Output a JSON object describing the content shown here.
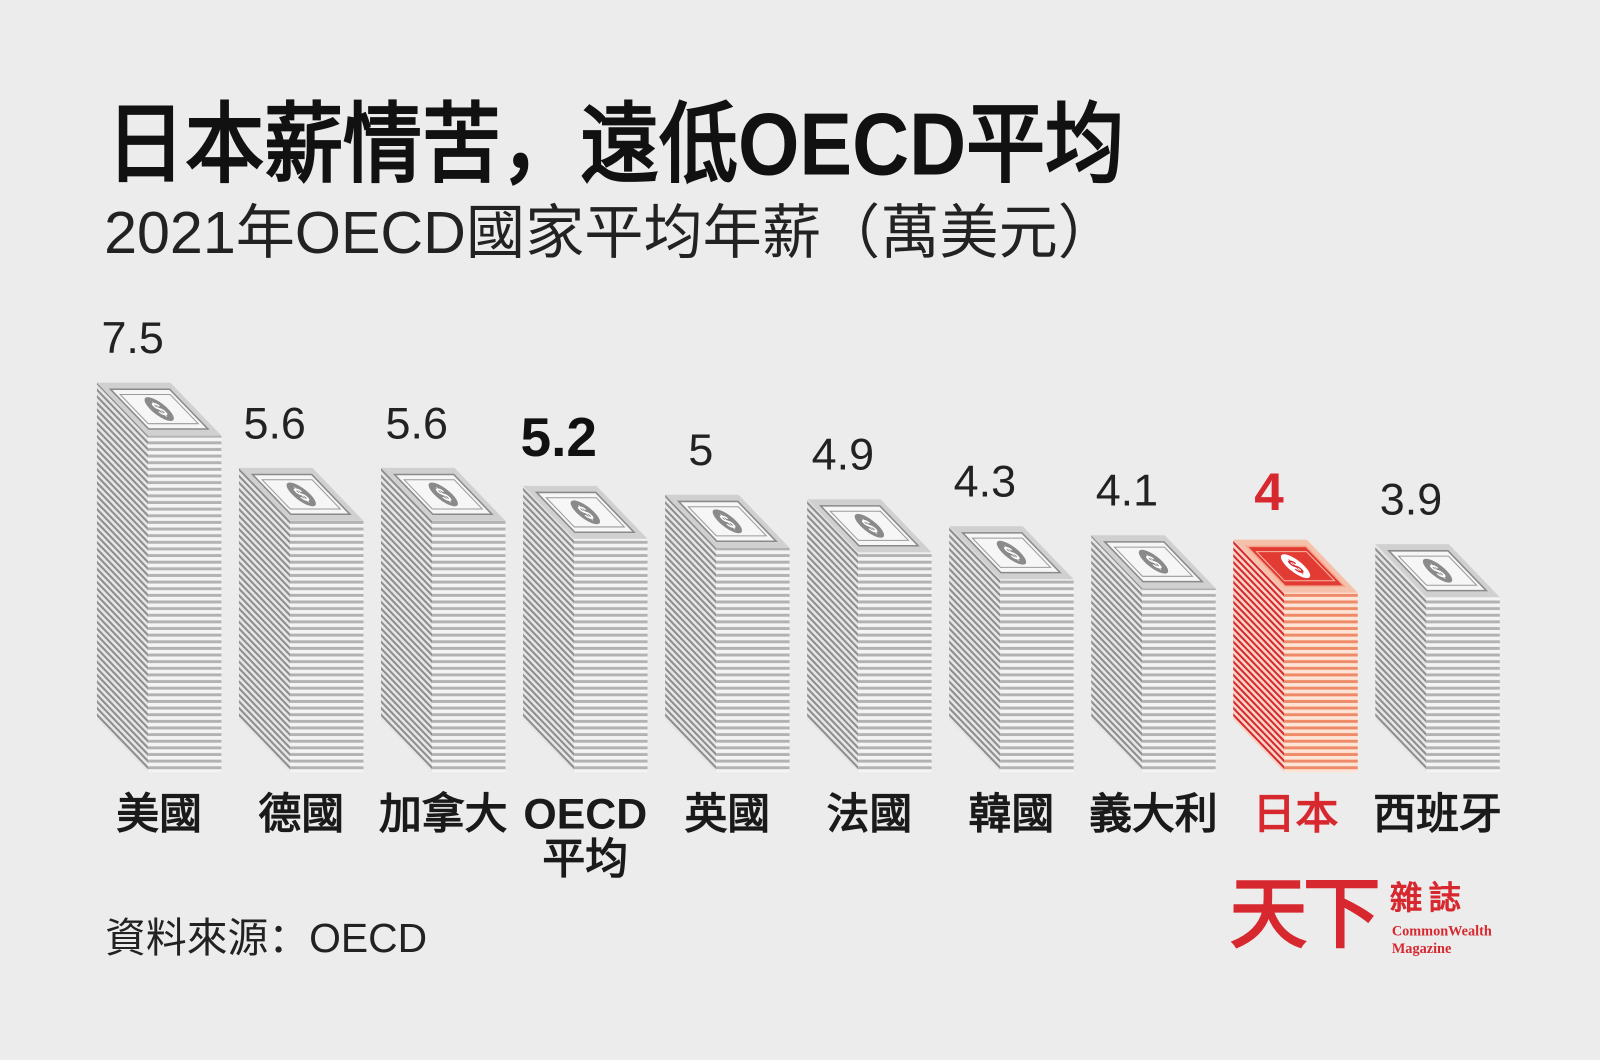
{
  "colors": {
    "background": "#ececec",
    "text": "#1a1a1a",
    "focus": "#d7282f"
  },
  "icons": {
    "bill": "dollar-bill-icon",
    "bill_symbol": "$"
  },
  "chart_data": {
    "type": "bar",
    "title": "日本薪情苦，遠低OECD平均",
    "subtitle": "2021年OECD國家平均年薪（萬美元）",
    "categories": [
      "美國",
      "德國",
      "加拿大",
      "OECD平均",
      "英國",
      "法國",
      "韓國",
      "義大利",
      "日本",
      "西班牙"
    ],
    "values": [
      7.5,
      5.6,
      5.6,
      5.2,
      5,
      4.9,
      4.3,
      4.1,
      4,
      3.9
    ],
    "focus_index": 8,
    "average_index": 3,
    "grid": false,
    "legend": false
  },
  "source": "資料來源：OECD",
  "logo": {
    "cn_main": "天下",
    "cn_sub": "雜誌",
    "en_line1": "CommonWealth",
    "en_line2": "Magazine"
  }
}
